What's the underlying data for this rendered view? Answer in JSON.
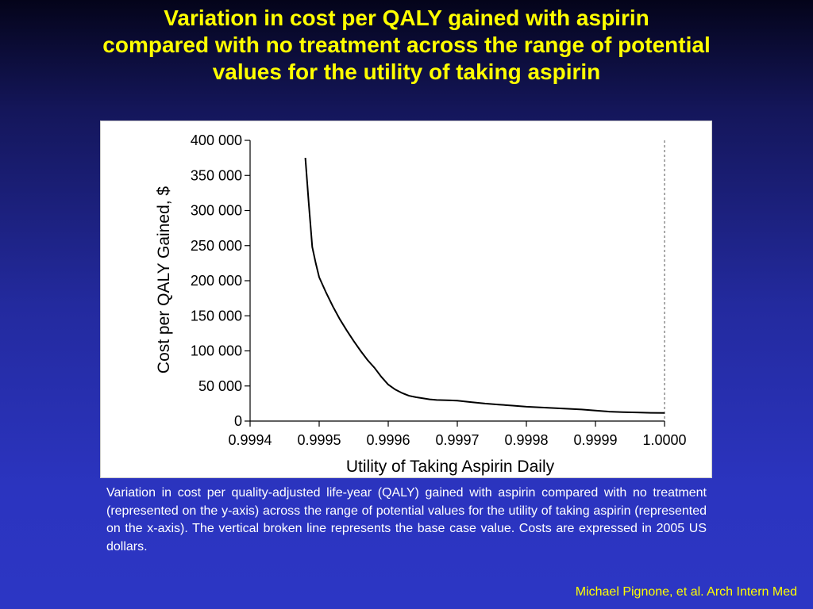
{
  "slide": {
    "title_lines": [
      "Variation in cost per QALY gained with aspirin",
      "compared with no treatment across the range of potential",
      "values for the utility of taking aspirin"
    ],
    "caption": "Variation in cost per quality-adjusted life-year (QALY) gained with aspirin compared with no treatment (represented on the y-axis) across the range of potential values for the utility of taking aspirin (represented on the x-axis). The vertical broken line represents the base case value. Costs are expressed in 2005 US dollars.",
    "citation": "Michael Pignone, et al. Arch Intern Med"
  },
  "chart_data": {
    "type": "line",
    "title": "",
    "xlabel": "Utility of Taking Aspirin Daily",
    "ylabel": "Cost per QALY Gained, $",
    "xlim": [
      0.9994,
      1.0
    ],
    "ylim": [
      0,
      400000
    ],
    "x_ticks": [
      "0.9994",
      "0.9995",
      "0.9996",
      "0.9997",
      "0.9998",
      "0.9999",
      "1.0000"
    ],
    "y_ticks": [
      "0",
      "50 000",
      "100 000",
      "150 000",
      "200 000",
      "250 000",
      "300 000",
      "350 000",
      "400 000"
    ],
    "series": [
      {
        "x": [
          0.99948,
          0.999485,
          0.99949,
          0.999495,
          0.9995,
          0.99951,
          0.99952,
          0.99953,
          0.99954,
          0.99955,
          0.99956,
          0.99957,
          0.99958,
          0.99959,
          0.9996,
          0.99961,
          0.99962,
          0.99963,
          0.99964,
          0.99965,
          0.99966,
          0.99967,
          0.99968,
          0.99969,
          0.9997,
          0.99972,
          0.99974,
          0.99976,
          0.99978,
          0.9998,
          0.99982,
          0.99984,
          0.99986,
          0.99988,
          0.9999,
          0.99992,
          0.99994,
          0.99996,
          0.99998,
          1.0
        ],
        "y": [
          375000,
          310000,
          248000,
          225000,
          205000,
          183000,
          163000,
          145000,
          129000,
          114000,
          100000,
          87000,
          76000,
          63000,
          52000,
          45000,
          40000,
          36000,
          34000,
          32500,
          31000,
          30000,
          29800,
          29500,
          29000,
          27000,
          25000,
          23500,
          22000,
          20500,
          19500,
          18500,
          17500,
          16500,
          15000,
          13500,
          12800,
          12300,
          11800,
          11500
        ]
      }
    ],
    "base_case_x": 1.0,
    "base_case_line": "dashed vertical line",
    "grid": false,
    "legend": "none"
  }
}
